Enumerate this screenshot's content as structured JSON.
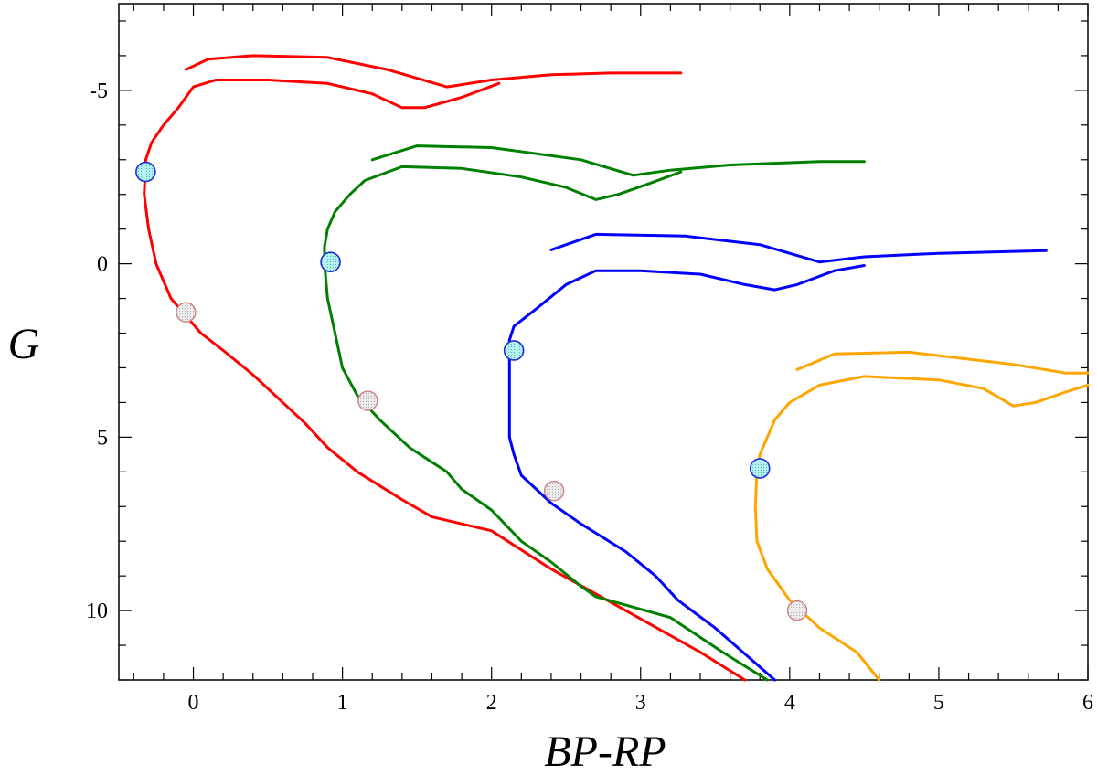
{
  "chart_data": {
    "type": "line",
    "xlabel": "BP-RP",
    "ylabel": "G",
    "xlim": [
      -0.5,
      6
    ],
    "ylim": [
      12,
      -7.5
    ],
    "y_inverted": true,
    "x_ticks": [
      0,
      1,
      2,
      3,
      4,
      5,
      6
    ],
    "y_ticks": [
      -5,
      0,
      5,
      10
    ],
    "x_tick_labels": [
      "0",
      "1",
      "2",
      "3",
      "4",
      "5",
      "6"
    ],
    "y_tick_labels": [
      "-5",
      "0",
      "5",
      "10"
    ],
    "grid": false,
    "legend": "none",
    "series": [
      {
        "color": "#ff0000",
        "points": [
          [
            3.7,
            12.0
          ],
          [
            3.4,
            11.2
          ],
          [
            2.9,
            10.0
          ],
          [
            2.4,
            8.8
          ],
          [
            2.0,
            7.7
          ],
          [
            1.6,
            7.3
          ],
          [
            1.4,
            6.8
          ],
          [
            1.1,
            6.0
          ],
          [
            0.9,
            5.3
          ],
          [
            0.75,
            4.6
          ],
          [
            0.55,
            3.8
          ],
          [
            0.4,
            3.2
          ],
          [
            0.2,
            2.5
          ],
          [
            0.05,
            2.0
          ],
          [
            -0.05,
            1.5
          ],
          [
            -0.15,
            1.0
          ],
          [
            -0.25,
            0.0
          ],
          [
            -0.3,
            -1.0
          ],
          [
            -0.33,
            -2.0
          ],
          [
            -0.32,
            -3.0
          ],
          [
            -0.28,
            -3.5
          ],
          [
            -0.2,
            -4.0
          ],
          [
            -0.1,
            -4.5
          ],
          [
            0.0,
            -5.1
          ],
          [
            0.15,
            -5.3
          ],
          [
            0.5,
            -5.3
          ],
          [
            0.9,
            -5.2
          ],
          [
            1.2,
            -4.9
          ],
          [
            1.4,
            -4.5
          ],
          [
            1.55,
            -4.5
          ],
          [
            1.8,
            -4.8
          ],
          [
            2.05,
            -5.2
          ]
        ],
        "giant_branch": [
          [
            -0.05,
            -5.6
          ],
          [
            0.1,
            -5.9
          ],
          [
            0.4,
            -6.0
          ],
          [
            0.9,
            -5.95
          ],
          [
            1.3,
            -5.6
          ],
          [
            1.7,
            -5.1
          ],
          [
            2.0,
            -5.3
          ],
          [
            2.4,
            -5.45
          ],
          [
            2.8,
            -5.5
          ],
          [
            3.27,
            -5.5
          ]
        ],
        "blue_marker": [
          -0.32,
          -2.65
        ],
        "gray_marker": [
          -0.05,
          1.4
        ]
      },
      {
        "color": "#008000",
        "points": [
          [
            3.85,
            12.0
          ],
          [
            3.55,
            11.2
          ],
          [
            3.2,
            10.2
          ],
          [
            2.7,
            9.6
          ],
          [
            2.6,
            9.3
          ],
          [
            2.4,
            8.6
          ],
          [
            2.2,
            8.0
          ],
          [
            2.0,
            7.1
          ],
          [
            1.8,
            6.5
          ],
          [
            1.7,
            6.0
          ],
          [
            1.45,
            5.3
          ],
          [
            1.25,
            4.5
          ],
          [
            1.1,
            3.8
          ],
          [
            1.0,
            3.0
          ],
          [
            0.95,
            2.0
          ],
          [
            0.9,
            1.0
          ],
          [
            0.88,
            0.0
          ],
          [
            0.88,
            -0.5
          ],
          [
            0.9,
            -1.0
          ],
          [
            0.95,
            -1.5
          ],
          [
            1.05,
            -2.0
          ],
          [
            1.15,
            -2.4
          ],
          [
            1.4,
            -2.8
          ],
          [
            1.8,
            -2.75
          ],
          [
            2.2,
            -2.5
          ],
          [
            2.5,
            -2.2
          ],
          [
            2.7,
            -1.85
          ],
          [
            2.85,
            -2.0
          ],
          [
            3.05,
            -2.3
          ],
          [
            3.27,
            -2.65
          ]
        ],
        "giant_branch": [
          [
            1.2,
            -3.0
          ],
          [
            1.5,
            -3.4
          ],
          [
            2.0,
            -3.35
          ],
          [
            2.6,
            -3.0
          ],
          [
            2.95,
            -2.55
          ],
          [
            3.2,
            -2.7
          ],
          [
            3.6,
            -2.85
          ],
          [
            4.2,
            -2.95
          ],
          [
            4.5,
            -2.95
          ]
        ],
        "blue_marker": [
          0.92,
          -0.05
        ],
        "gray_marker": [
          1.17,
          3.95
        ]
      },
      {
        "color": "#0000ff",
        "points": [
          [
            3.9,
            12.0
          ],
          [
            3.5,
            10.5
          ],
          [
            3.25,
            9.7
          ],
          [
            3.1,
            9.0
          ],
          [
            2.9,
            8.3
          ],
          [
            2.6,
            7.5
          ],
          [
            2.4,
            6.9
          ],
          [
            2.2,
            6.1
          ],
          [
            2.15,
            5.5
          ],
          [
            2.12,
            5.0
          ],
          [
            2.12,
            4.0
          ],
          [
            2.12,
            3.0
          ],
          [
            2.12,
            2.2
          ],
          [
            2.15,
            1.8
          ],
          [
            2.3,
            1.3
          ],
          [
            2.5,
            0.6
          ],
          [
            2.7,
            0.2
          ],
          [
            3.0,
            0.2
          ],
          [
            3.4,
            0.3
          ],
          [
            3.7,
            0.6
          ],
          [
            3.9,
            0.75
          ],
          [
            4.05,
            0.6
          ],
          [
            4.3,
            0.2
          ],
          [
            4.5,
            0.05
          ]
        ],
        "giant_branch": [
          [
            2.4,
            -0.4
          ],
          [
            2.7,
            -0.85
          ],
          [
            3.3,
            -0.8
          ],
          [
            3.8,
            -0.55
          ],
          [
            4.2,
            -0.05
          ],
          [
            4.5,
            -0.2
          ],
          [
            5.0,
            -0.3
          ],
          [
            5.72,
            -0.38
          ]
        ],
        "blue_marker": [
          2.15,
          2.5
        ],
        "gray_marker": [
          2.42,
          6.55
        ]
      },
      {
        "color": "#ffa500",
        "points": [
          [
            4.6,
            12.0
          ],
          [
            4.45,
            11.2
          ],
          [
            4.2,
            10.5
          ],
          [
            4.0,
            9.7
          ],
          [
            3.85,
            8.8
          ],
          [
            3.78,
            8.0
          ],
          [
            3.77,
            7.0
          ],
          [
            3.78,
            6.0
          ],
          [
            3.8,
            5.5
          ],
          [
            3.85,
            5.0
          ],
          [
            3.9,
            4.5
          ],
          [
            4.0,
            4.0
          ],
          [
            4.2,
            3.5
          ],
          [
            4.5,
            3.25
          ],
          [
            5.0,
            3.35
          ],
          [
            5.3,
            3.6
          ],
          [
            5.5,
            4.1
          ],
          [
            5.65,
            4.0
          ],
          [
            5.85,
            3.7
          ],
          [
            6.0,
            3.5
          ]
        ],
        "giant_branch": [
          [
            4.05,
            3.05
          ],
          [
            4.3,
            2.6
          ],
          [
            4.8,
            2.55
          ],
          [
            5.5,
            2.9
          ],
          [
            5.85,
            3.15
          ],
          [
            6.0,
            3.15
          ]
        ],
        "blue_marker": [
          3.8,
          5.9
        ],
        "gray_marker": [
          4.05,
          10.0
        ]
      }
    ]
  }
}
